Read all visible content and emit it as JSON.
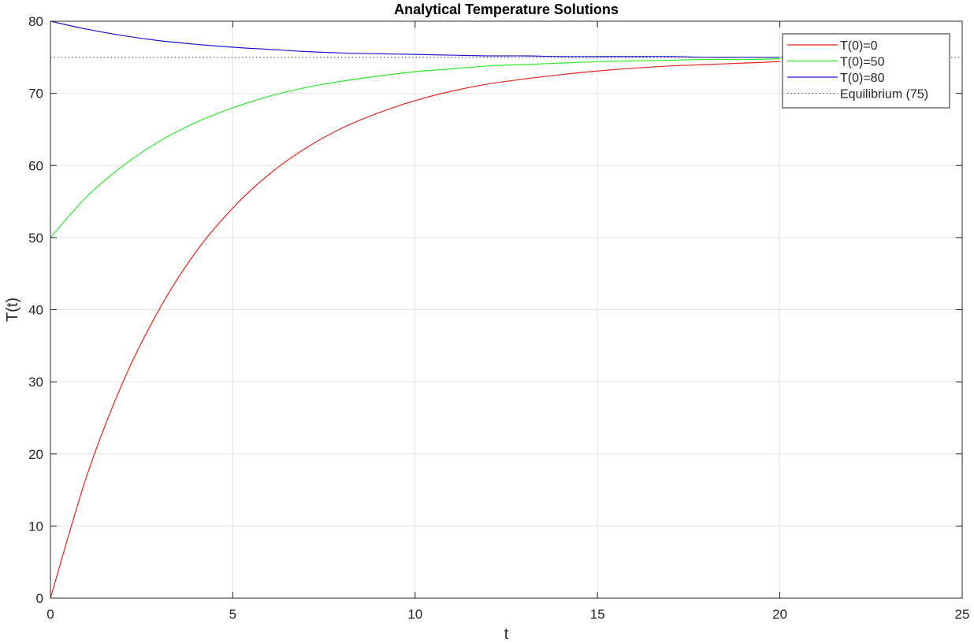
{
  "chart_data": {
    "type": "line",
    "title": "Analytical Temperature Solutions",
    "xlabel": "t",
    "ylabel": "T(t)",
    "xlim": [
      0,
      25
    ],
    "ylim": [
      0,
      80
    ],
    "xticks": [
      0,
      5,
      10,
      15,
      20,
      25
    ],
    "yticks": [
      0,
      10,
      20,
      30,
      40,
      50,
      60,
      70,
      80
    ],
    "xtick_labels": [
      "0",
      "5",
      "10",
      "15",
      "20",
      "25"
    ],
    "ytick_labels": [
      "0",
      "10",
      "20",
      "30",
      "40",
      "50",
      "60",
      "70",
      "80"
    ],
    "grid": true,
    "legend_position": "top-right",
    "series": [
      {
        "name": "T(0)=0",
        "color": "#e8241c",
        "style": "solid",
        "x": [
          0,
          1,
          2,
          3,
          4,
          5,
          6,
          7,
          8,
          9,
          10,
          11,
          12,
          13,
          14,
          15,
          16,
          17,
          18,
          19,
          20
        ],
        "values": [
          0,
          17.0,
          30.1,
          40.2,
          48.1,
          54.1,
          58.8,
          62.4,
          65.2,
          67.3,
          69.0,
          70.3,
          71.3,
          72.0,
          72.6,
          73.1,
          73.5,
          73.8,
          74.0,
          74.2,
          74.4
        ]
      },
      {
        "name": "T(0)=50",
        "color": "#2ee62e",
        "style": "solid",
        "x": [
          0,
          1,
          2,
          3,
          4,
          5,
          6,
          7,
          8,
          9,
          10,
          11,
          12,
          13,
          14,
          15,
          16,
          17,
          18,
          19,
          20
        ],
        "values": [
          50.0,
          55.7,
          60.0,
          63.4,
          66.0,
          68.0,
          69.6,
          70.8,
          71.7,
          72.4,
          73.0,
          73.4,
          73.8,
          74.0,
          74.2,
          74.4,
          74.5,
          74.6,
          74.7,
          74.7,
          74.8
        ]
      },
      {
        "name": "T(0)=80",
        "color": "#1a1acc",
        "style": "solid",
        "x": [
          0,
          1,
          2,
          3,
          4,
          5,
          6,
          7,
          8,
          9,
          10,
          11,
          12,
          13,
          14,
          15,
          16,
          17,
          18,
          19,
          20
        ],
        "values": [
          80.0,
          78.9,
          78.0,
          77.3,
          76.8,
          76.4,
          76.1,
          75.8,
          75.6,
          75.5,
          75.4,
          75.3,
          75.2,
          75.2,
          75.1,
          75.1,
          75.1,
          75.1,
          75.0,
          75.0,
          75.0
        ]
      },
      {
        "name": "Equilibrium (75)",
        "color": "#333333",
        "style": "dotted",
        "x": [
          0,
          25
        ],
        "values": [
          75,
          75
        ]
      }
    ]
  }
}
